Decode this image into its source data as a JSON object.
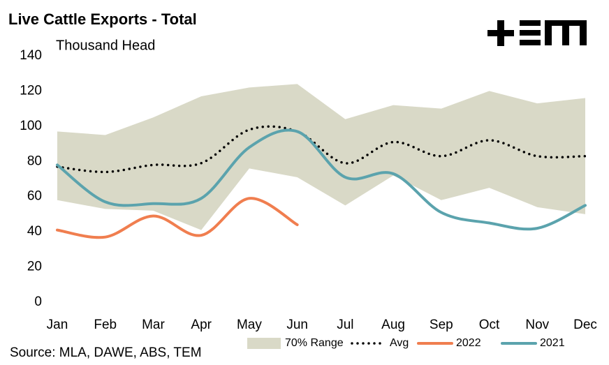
{
  "chart_data": {
    "type": "line",
    "title": "Live Cattle Exports - Total",
    "y_label": "Thousand Head",
    "source": "Source: MLA, DAWE, ABS, TEM",
    "categories": [
      "Jan",
      "Feb",
      "Mar",
      "Apr",
      "May",
      "Jun",
      "Jul",
      "Aug",
      "Sep",
      "Oct",
      "Nov",
      "Dec"
    ],
    "series": [
      {
        "name": "70% Range",
        "color": "#d9d9c7",
        "kind": "range",
        "values": [
          97,
          95,
          105,
          117,
          122,
          124,
          104,
          112,
          110,
          120,
          113,
          116
        ],
        "lower": [
          58,
          53,
          52,
          41,
          76,
          71,
          55,
          72,
          58,
          65,
          54,
          50
        ]
      },
      {
        "name": "Avg",
        "color": "#000000",
        "kind": "dotted",
        "values": [
          77,
          74,
          78,
          79,
          98,
          97,
          79,
          91,
          83,
          92,
          83,
          83
        ]
      },
      {
        "name": "2022",
        "color": "#f07e4f",
        "kind": "line",
        "values": [
          41,
          37,
          49,
          38,
          59,
          44,
          null,
          null,
          null,
          null,
          null,
          null
        ]
      },
      {
        "name": "2021",
        "color": "#5ba3ad",
        "kind": "line",
        "values": [
          78,
          57,
          56,
          59,
          88,
          97,
          71,
          73,
          51,
          45,
          42,
          55
        ]
      }
    ],
    "ylim": [
      0,
      140
    ],
    "yticks": [
      0,
      20,
      40,
      60,
      80,
      100,
      120,
      140
    ]
  }
}
